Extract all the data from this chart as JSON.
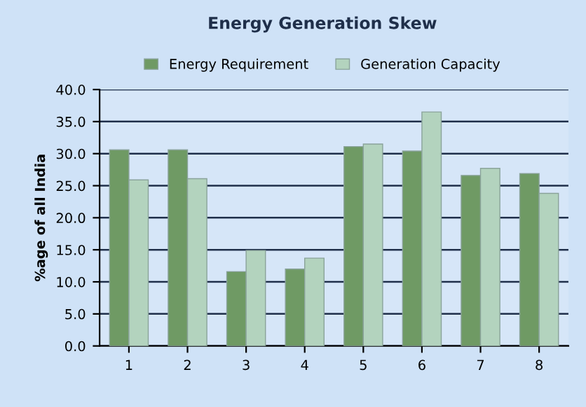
{
  "chart_data": {
    "type": "bar",
    "title": "Energy Generation Skew",
    "ylabel": "%age of all India",
    "categories": [
      "1",
      "2",
      "3",
      "4",
      "5",
      "6",
      "7",
      "8"
    ],
    "series": [
      {
        "name": "Energy Requirement",
        "color": "#6f9a64",
        "values": [
          30.6,
          30.6,
          11.6,
          12.0,
          31.1,
          30.4,
          26.6,
          26.9
        ]
      },
      {
        "name": "Generation Capacity",
        "color": "#b3d3be",
        "values": [
          25.9,
          26.1,
          14.9,
          13.7,
          31.5,
          36.5,
          27.7,
          23.8
        ]
      }
    ],
    "ylim": [
      0,
      40
    ],
    "yticks": [
      {
        "value": 0,
        "label": "0.0"
      },
      {
        "value": 5,
        "label": "5.0"
      },
      {
        "value": 10,
        "label": "10.0"
      },
      {
        "value": 15,
        "label": "15.0"
      },
      {
        "value": 20,
        "label": "20.0"
      },
      {
        "value": 25,
        "label": "25.0"
      },
      {
        "value": 30,
        "label": "30.0"
      },
      {
        "value": 35,
        "label": "35.0"
      },
      {
        "value": 40,
        "label": "40.0"
      }
    ],
    "grid": "y",
    "legend": "top"
  }
}
